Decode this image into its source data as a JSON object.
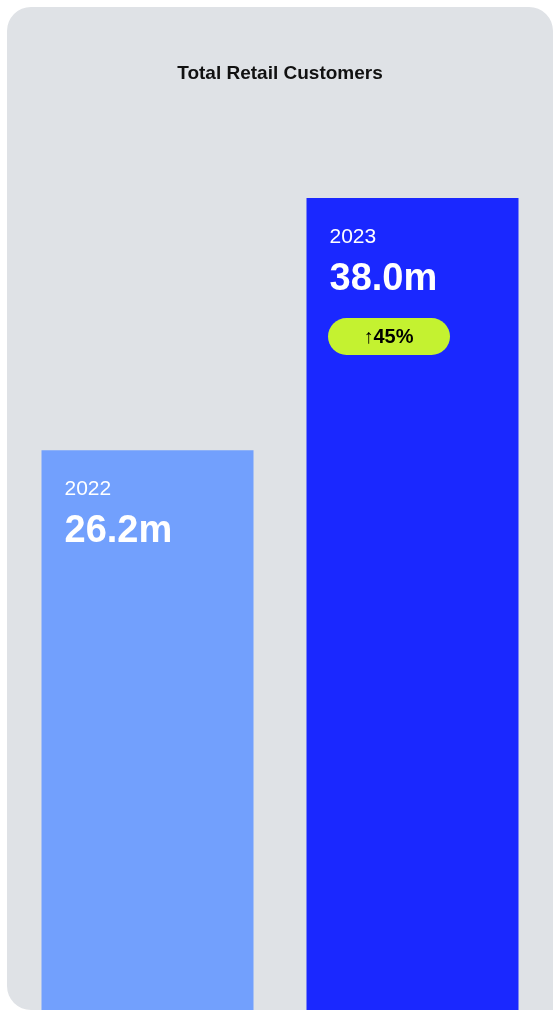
{
  "chart_data": {
    "type": "bar",
    "title": "Total Retail Customers",
    "categories": [
      "2022",
      "2023"
    ],
    "values": [
      26.2,
      38.0
    ],
    "colors": [
      "#72a0fd",
      "#1a28ff"
    ],
    "value_labels": [
      "26.2m",
      "38.0m"
    ],
    "annotations": [
      "↑45%"
    ]
  }
}
